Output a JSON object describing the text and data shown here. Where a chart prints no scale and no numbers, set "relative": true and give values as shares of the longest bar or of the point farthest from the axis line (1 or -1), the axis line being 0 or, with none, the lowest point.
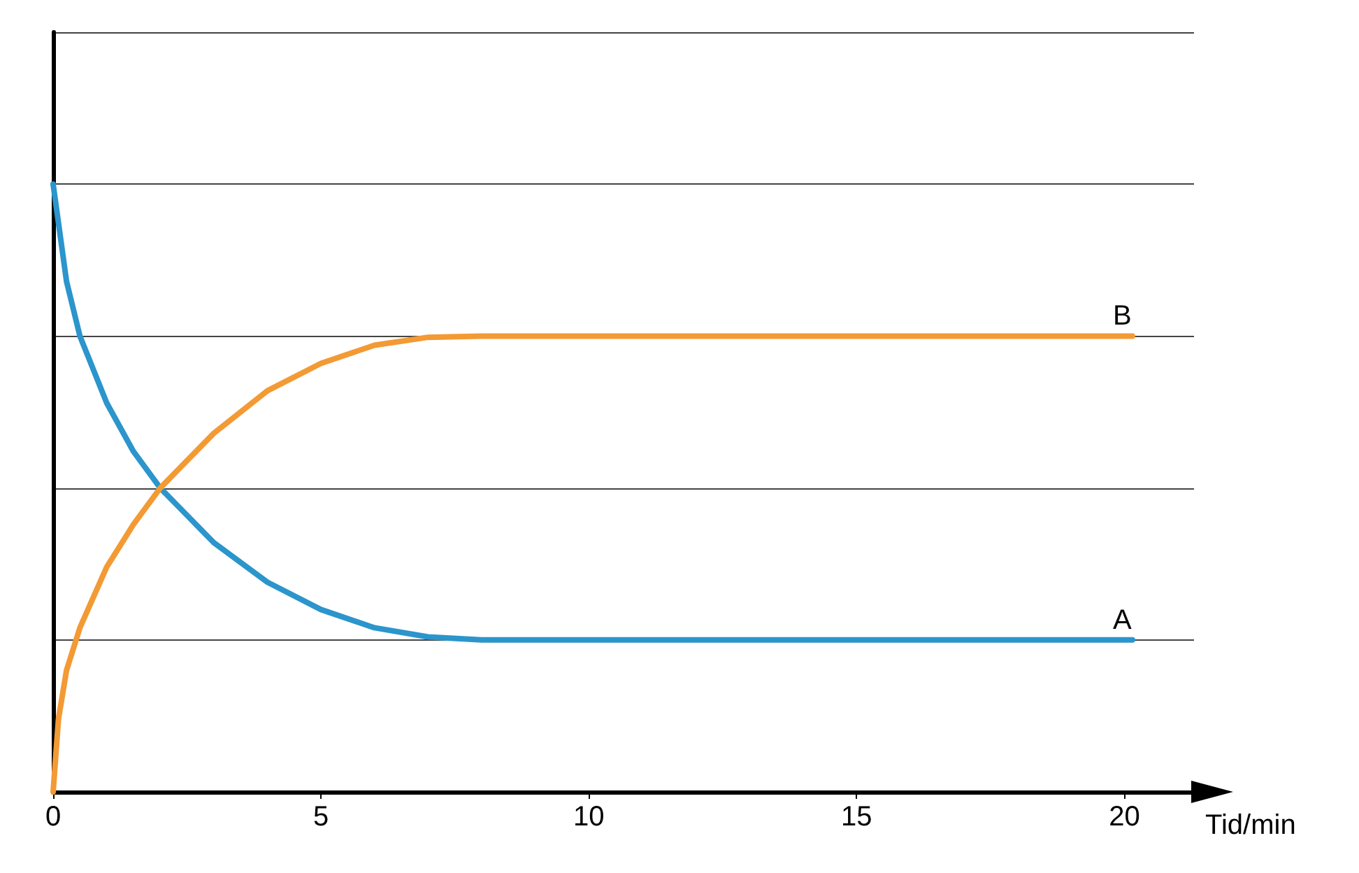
{
  "chart_data": {
    "type": "line",
    "relative": true,
    "xlabel": "Tid/min",
    "xlim": [
      0,
      21.3
    ],
    "xticks": [
      0,
      5,
      10,
      15,
      20
    ],
    "grid": "y",
    "legend": false,
    "marker": "none",
    "line_style": "solid",
    "series": [
      {
        "name": "A",
        "color": "#2b95cc",
        "x": [
          0,
          0.25,
          0.5,
          1,
          1.5,
          2,
          3,
          4,
          5,
          6,
          7,
          8,
          20.15
        ],
        "values": [
          1,
          0.84,
          0.75,
          0.64,
          0.56,
          0.5,
          0.41,
          0.345,
          0.3,
          0.27,
          0.255,
          0.25,
          0.25
        ]
      },
      {
        "name": "B",
        "color": "#f39a34",
        "x": [
          0,
          0.1,
          0.25,
          0.5,
          1,
          1.5,
          2,
          3,
          4,
          5,
          6,
          7,
          8,
          20.15
        ],
        "values": [
          0,
          0.12,
          0.2,
          0.27,
          0.37,
          0.44,
          0.5,
          0.59,
          0.66,
          0.705,
          0.735,
          0.748,
          0.75,
          0.75
        ]
      }
    ]
  }
}
